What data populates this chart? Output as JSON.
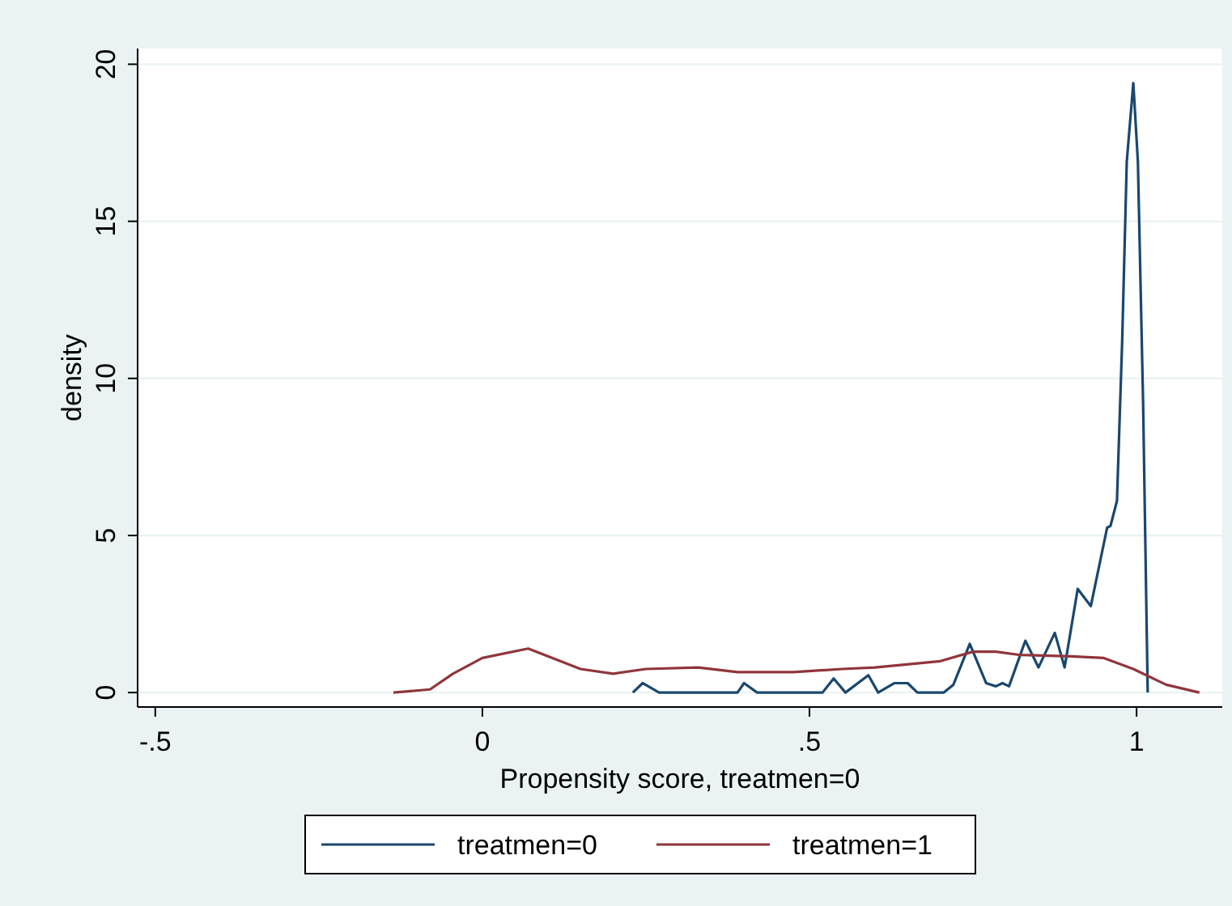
{
  "chart_data": {
    "type": "line",
    "xlabel": "Propensity score, treatmen=0",
    "ylabel": "density",
    "xlim": [
      -0.527,
      1.131
    ],
    "ylim": [
      -0.46,
      20.5
    ],
    "xticks": [
      {
        "value": -0.5,
        "label": "-.5"
      },
      0,
      {
        "value": 0.5,
        "label": ".5"
      },
      1
    ],
    "yticks": [
      0,
      5,
      10,
      15,
      20
    ],
    "grid": "y",
    "legend": "bottom",
    "line_style": "solid",
    "marker": "none",
    "series": [
      {
        "name": "treatmen=0",
        "color": "#1a476f",
        "x": [
          0.23,
          0.245,
          0.27,
          0.39,
          0.4,
          0.42,
          0.52,
          0.537,
          0.555,
          0.59,
          0.605,
          0.63,
          0.65,
          0.665,
          0.705,
          0.72,
          0.745,
          0.77,
          0.785,
          0.795,
          0.805,
          0.83,
          0.85,
          0.875,
          0.89,
          0.91,
          0.93,
          0.955,
          0.96,
          0.97,
          0.978,
          0.985,
          0.995,
          1.002,
          1.01,
          1.017
        ],
        "values": [
          0,
          0.3,
          0,
          0,
          0.3,
          0,
          0,
          0.45,
          0,
          0.55,
          0,
          0.3,
          0.3,
          0,
          0,
          0.25,
          1.55,
          0.3,
          0.2,
          0.3,
          0.2,
          1.65,
          0.8,
          1.9,
          0.8,
          3.3,
          2.75,
          5.25,
          5.3,
          6.1,
          11.2,
          16.9,
          19.4,
          16.9,
          9.2,
          0
        ]
      },
      {
        "name": "treatmen=1",
        "color": "#90353b",
        "x": [
          -0.136,
          -0.08,
          -0.045,
          0,
          0.07,
          0.15,
          0.2,
          0.25,
          0.33,
          0.39,
          0.475,
          0.55,
          0.6,
          0.7,
          0.75,
          0.785,
          0.82,
          0.9,
          0.95,
          0.995,
          1.045,
          1.096
        ],
        "values": [
          0,
          0.1,
          0.6,
          1.1,
          1.4,
          0.75,
          0.6,
          0.75,
          0.8,
          0.65,
          0.65,
          0.75,
          0.8,
          1.0,
          1.3,
          1.3,
          1.2,
          1.15,
          1.1,
          0.75,
          0.25,
          0
        ]
      }
    ]
  }
}
